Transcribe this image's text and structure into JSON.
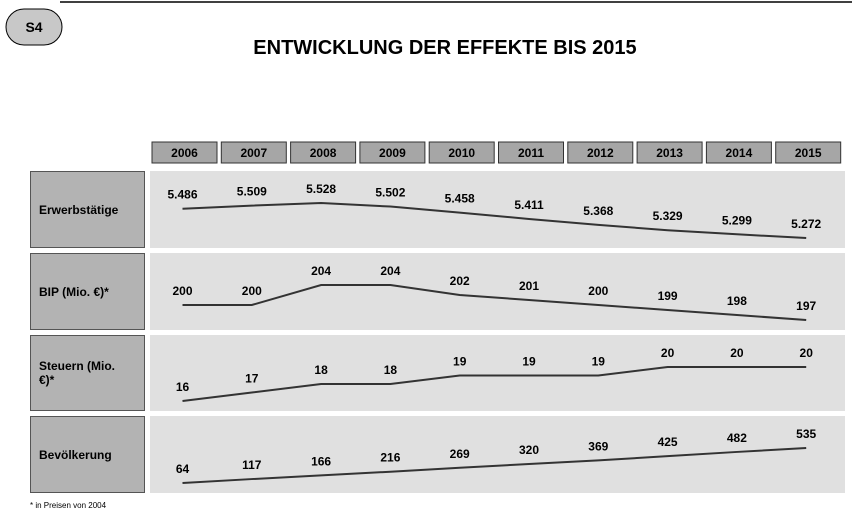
{
  "badge": "S4",
  "title": "ENTWICKLUNG DER EFFEKTE BIS 2015",
  "years": [
    "2006",
    "2007",
    "2008",
    "2009",
    "2010",
    "2011",
    "2012",
    "2013",
    "2014",
    "2015"
  ],
  "rows": [
    {
      "label": "Erwerbstätige",
      "values": [
        5486,
        5509,
        5528,
        5502,
        5458,
        5411,
        5368,
        5329,
        5299,
        5272
      ],
      "value_labels": [
        "5.486",
        "5.509",
        "5.528",
        "5.502",
        "5.458",
        "5.411",
        "5.368",
        "5.329",
        "5.299",
        "5.272"
      ]
    },
    {
      "label": "BIP (Mio. €)*",
      "values": [
        200,
        200,
        204,
        204,
        202,
        201,
        200,
        199,
        198,
        197
      ]
    },
    {
      "label": "Steuern (Mio. €)*",
      "values": [
        16,
        17,
        18,
        18,
        19,
        19,
        19,
        20,
        20,
        20
      ]
    },
    {
      "label": "Bevölkerung",
      "values": [
        64,
        117,
        166,
        216,
        269,
        320,
        369,
        425,
        482,
        535
      ]
    }
  ],
  "footnote": "* in Preisen von 2004"
}
